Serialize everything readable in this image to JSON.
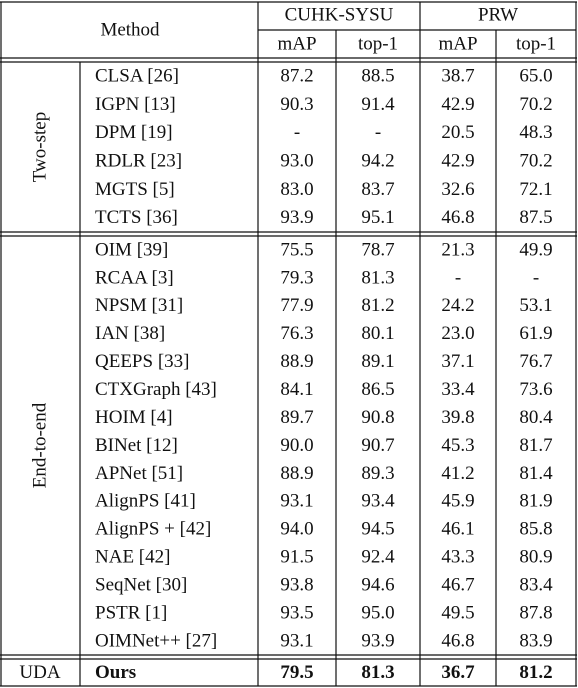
{
  "table": {
    "header": {
      "method": "Method",
      "datasets": [
        "CUHK-SYSU",
        "PRW"
      ],
      "metrics": [
        "mAP",
        "top-1",
        "mAP",
        "top-1"
      ]
    },
    "groups": [
      {
        "label": "Two-step",
        "rows": [
          [
            "CLSA [26]",
            "87.2",
            "88.5",
            "38.7",
            "65.0"
          ],
          [
            "IGPN [13]",
            "90.3",
            "91.4",
            "42.9",
            "70.2"
          ],
          [
            "DPM [19]",
            "-",
            "-",
            "20.5",
            "48.3"
          ],
          [
            "RDLR [23]",
            "93.0",
            "94.2",
            "42.9",
            "70.2"
          ],
          [
            "MGTS [5]",
            "83.0",
            "83.7",
            "32.6",
            "72.1"
          ],
          [
            "TCTS [36]",
            "93.9",
            "95.1",
            "46.8",
            "87.5"
          ]
        ]
      },
      {
        "label": "End-to-end",
        "rows": [
          [
            "OIM [39]",
            "75.5",
            "78.7",
            "21.3",
            "49.9"
          ],
          [
            "RCAA [3]",
            "79.3",
            "81.3",
            "-",
            "-"
          ],
          [
            "NPSM [31]",
            "77.9",
            "81.2",
            "24.2",
            "53.1"
          ],
          [
            "IAN [38]",
            "76.3",
            "80.1",
            "23.0",
            "61.9"
          ],
          [
            "QEEPS [33]",
            "88.9",
            "89.1",
            "37.1",
            "76.7"
          ],
          [
            "CTXGraph [43]",
            "84.1",
            "86.5",
            "33.4",
            "73.6"
          ],
          [
            "HOIM [4]",
            "89.7",
            "90.8",
            "39.8",
            "80.4"
          ],
          [
            "BINet [12]",
            "90.0",
            "90.7",
            "45.3",
            "81.7"
          ],
          [
            "APNet [51]",
            "88.9",
            "89.3",
            "41.2",
            "81.4"
          ],
          [
            "AlignPS [41]",
            "93.1",
            "93.4",
            "45.9",
            "81.9"
          ],
          [
            "AlignPS + [42]",
            "94.0",
            "94.5",
            "46.1",
            "85.8"
          ],
          [
            "NAE [42]",
            "91.5",
            "92.4",
            "43.3",
            "80.9"
          ],
          [
            "SeqNet [30]",
            "93.8",
            "94.6",
            "46.7",
            "83.4"
          ],
          [
            "PSTR [1]",
            "93.5",
            "95.0",
            "49.5",
            "87.8"
          ],
          [
            "OIMNet++ [27]",
            "93.1",
            "93.9",
            "46.8",
            "83.9"
          ]
        ]
      },
      {
        "label": "UDA",
        "rows": [
          [
            "Ours",
            "79.5",
            "81.3",
            "36.7",
            "81.2"
          ]
        ]
      }
    ]
  }
}
